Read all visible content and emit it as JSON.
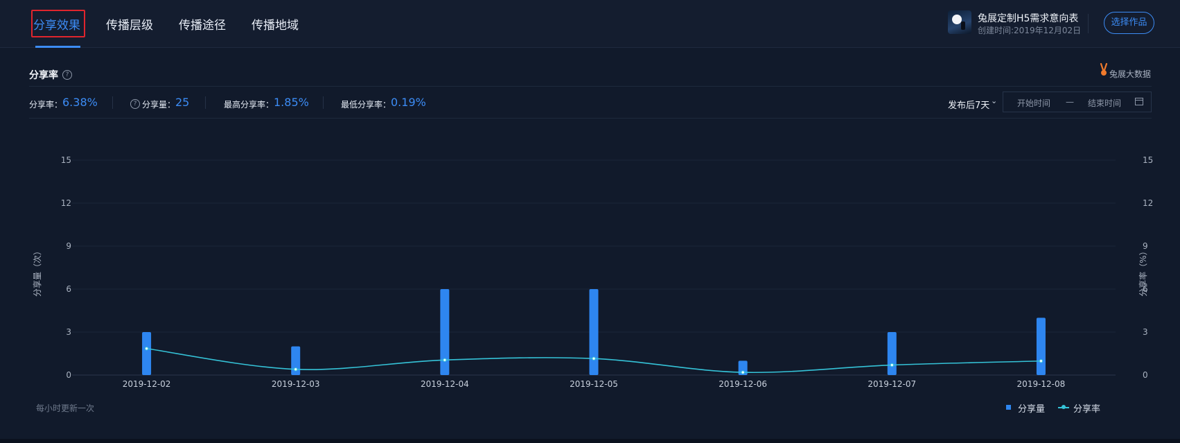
{
  "tabs": [
    {
      "label": "分享效果",
      "active": true
    },
    {
      "label": "传播层级",
      "active": false
    },
    {
      "label": "传播途径",
      "active": false
    },
    {
      "label": "传播地域",
      "active": false
    }
  ],
  "work": {
    "title": "兔展定制H5需求意向表",
    "created": "创建时间:2019年12月02日",
    "select_label": "选择作品",
    "thumb_icon": "work-thumbnail-image"
  },
  "section": {
    "title": "分享率",
    "help_icon": "question-circle-icon",
    "brand": "兔展大数据",
    "brand_icon": "rabbit-logo-icon"
  },
  "stats": {
    "share_rate_label": "分享率：",
    "share_rate_value": "6.38%",
    "share_count_label": "分享量：",
    "share_count_value": "25",
    "max_rate_label": "最高分享率：",
    "max_rate_value": "1.85%",
    "min_rate_label": "最低分享率：",
    "min_rate_value": "0.19%"
  },
  "filter": {
    "period": "发布后7天",
    "start_placeholder": "开始时间",
    "range_separator": "—",
    "end_placeholder": "结束时间",
    "calendar_icon": "calendar-icon"
  },
  "chart_data": {
    "type": "bar",
    "categories": [
      "2019-12-02",
      "2019-12-03",
      "2019-12-04",
      "2019-12-05",
      "2019-12-06",
      "2019-12-07",
      "2019-12-08"
    ],
    "series": [
      {
        "name": "分享量",
        "type": "bar",
        "axis": "left",
        "values": [
          3,
          2,
          6,
          6,
          1,
          3,
          4
        ],
        "color": "#2e86f0"
      },
      {
        "name": "分享率",
        "type": "line",
        "axis": "right",
        "smooth": true,
        "values": [
          1.85,
          0.4,
          1.05,
          1.15,
          0.19,
          0.7,
          0.98
        ],
        "color": "#35c3d8"
      }
    ],
    "ylabel_left": "分享量（次）",
    "ylabel_right": "分享率（%）",
    "ylim": [
      0,
      15
    ],
    "yticks": [
      0,
      3,
      6,
      9,
      12,
      15
    ],
    "grid": true,
    "legend": "bottom-right"
  },
  "footnote": "每小时更新一次"
}
